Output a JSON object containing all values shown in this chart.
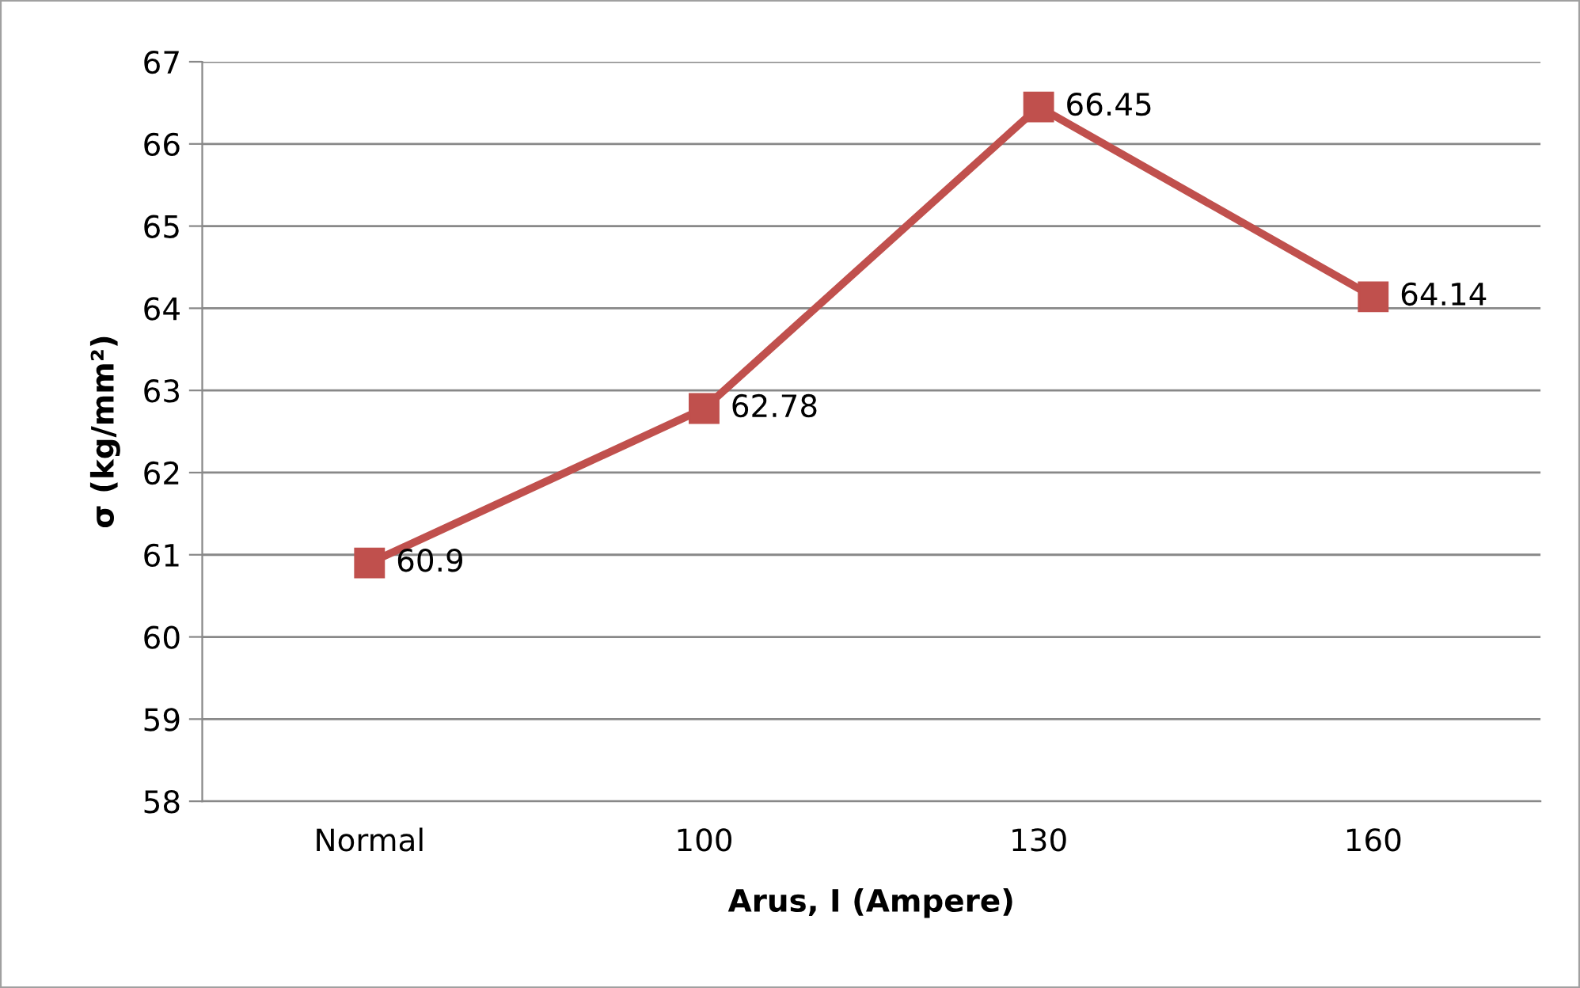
{
  "chart_data": {
    "type": "line",
    "xlabel": "Arus, I (Ampere)",
    "ylabel": "σ (kg/mm²)",
    "categories": [
      "Normal",
      "100",
      "130",
      "160"
    ],
    "series": [
      {
        "color": "#c0504d",
        "values": [
          60.9,
          62.78,
          66.45,
          64.14
        ]
      }
    ],
    "ylim": [
      58,
      67
    ],
    "yticks": [
      58,
      59,
      60,
      61,
      62,
      63,
      64,
      65,
      66,
      67
    ],
    "grid": "y",
    "marker": "square",
    "line_style": "solid",
    "data_labels": true
  }
}
